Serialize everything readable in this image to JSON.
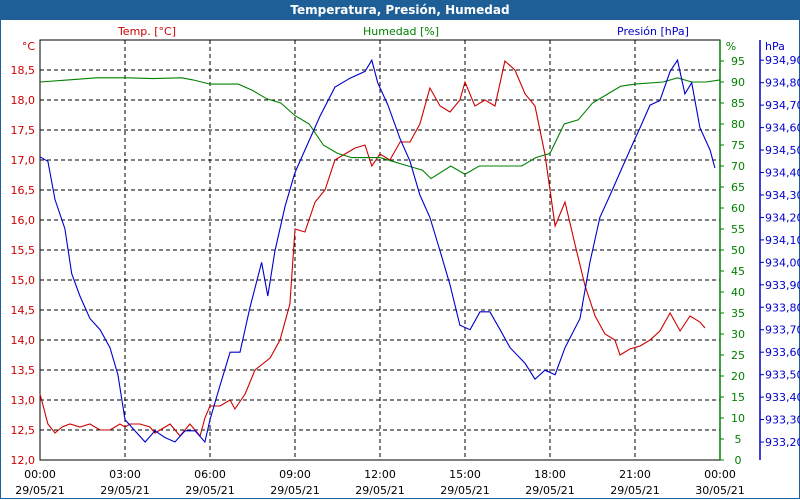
{
  "title": "Temperatura, Presión, Humedad",
  "chart_data": {
    "type": "line",
    "title": "Temperatura, Presión, Humedad",
    "x_ticks": [
      {
        "t": "00:00",
        "d": "29/05/21"
      },
      {
        "t": "03:00",
        "d": "29/05/21"
      },
      {
        "t": "06:00",
        "d": "29/05/21"
      },
      {
        "t": "09:00",
        "d": "29/05/21"
      },
      {
        "t": "12:00",
        "d": "29/05/21"
      },
      {
        "t": "15:00",
        "d": "29/05/21"
      },
      {
        "t": "18:00",
        "d": "29/05/21"
      },
      {
        "t": "21:00",
        "d": "29/05/21"
      },
      {
        "t": "00:00",
        "d": "30/05/21"
      }
    ],
    "xlim_hours": [
      0,
      24
    ],
    "axes": {
      "temp": {
        "label": "Temp. [°C]",
        "unit": "°C",
        "color": "#cc0000",
        "ylim": [
          12.0,
          19.0
        ],
        "ticks": [
          "12,0",
          "12,5",
          "13,0",
          "13,5",
          "14,0",
          "14,5",
          "15,0",
          "15,5",
          "16,0",
          "16,5",
          "17,0",
          "17,5",
          "18,0",
          "18,5"
        ]
      },
      "hum": {
        "label": "Humedad [%]",
        "unit": "%",
        "color": "#008000",
        "ylim": [
          0,
          100
        ],
        "ticks": [
          "0",
          "5",
          "10",
          "15",
          "20",
          "25",
          "30",
          "35",
          "40",
          "45",
          "50",
          "55",
          "60",
          "65",
          "70",
          "75",
          "80",
          "85",
          "90",
          "95"
        ]
      },
      "pres": {
        "label": "Presión [hPa]",
        "unit": "hPa",
        "color": "#0000cc",
        "ylim": [
          933.12,
          934.99
        ],
        "ticks": [
          "933,20",
          "933,30",
          "933,40",
          "933,50",
          "933,60",
          "933,70",
          "933,80",
          "933,90",
          "934,00",
          "934,10",
          "934,20",
          "934,30",
          "934,40",
          "934,50",
          "934,60",
          "934,70",
          "934,80",
          "934,90"
        ]
      }
    },
    "series": [
      {
        "name": "Temp. [°C]",
        "axis": "temp",
        "hours": [
          0,
          0.28,
          0.53,
          0.78,
          1.06,
          1.41,
          1.76,
          2.12,
          2.47,
          2.82,
          3,
          3.18,
          3.53,
          3.88,
          4.06,
          4.24,
          4.59,
          4.94,
          5.29,
          5.65,
          5.82,
          6,
          6.35,
          6.71,
          6.88,
          7.24,
          7.59,
          8.12,
          8.47,
          8.82,
          9,
          9.35,
          9.71,
          10.06,
          10.41,
          10.76,
          11.12,
          11.47,
          11.71,
          12,
          12.35,
          12.71,
          13.06,
          13.41,
          13.76,
          14.12,
          14.47,
          14.82,
          15,
          15.35,
          15.71,
          16.06,
          16.41,
          16.76,
          17.12,
          17.47,
          17.82,
          18.18,
          18.53,
          18.88,
          19.24,
          19.59,
          19.94,
          20.29,
          20.47,
          20.82,
          21.18,
          21.53,
          21.88,
          22.24,
          22.59,
          22.94,
          23.29,
          23.47
        ],
        "values": [
          13.1,
          12.6,
          12.45,
          12.55,
          12.6,
          12.55,
          12.6,
          12.5,
          12.5,
          12.6,
          12.55,
          12.6,
          12.6,
          12.55,
          12.45,
          12.5,
          12.6,
          12.4,
          12.6,
          12.4,
          12.7,
          12.9,
          12.9,
          13.0,
          12.85,
          13.1,
          13.5,
          13.7,
          14.0,
          14.6,
          15.85,
          15.8,
          16.3,
          16.5,
          17.0,
          17.1,
          17.2,
          17.25,
          16.9,
          17.1,
          17.0,
          17.3,
          17.3,
          17.6,
          18.2,
          17.9,
          17.8,
          18.0,
          18.3,
          17.9,
          18.0,
          17.9,
          18.65,
          18.5,
          18.1,
          17.9,
          17.1,
          15.9,
          16.3,
          15.6,
          14.9,
          14.4,
          14.1,
          14.0,
          13.75,
          13.85,
          13.9,
          14.0,
          14.15,
          14.45,
          14.15,
          14.4,
          14.3,
          14.2
        ]
      },
      {
        "name": "Humedad [%]",
        "axis": "hum",
        "hours": [
          0,
          1,
          2,
          3,
          4,
          5,
          5.4,
          6,
          7,
          7.5,
          8,
          8.5,
          9,
          9.5,
          10,
          10.5,
          11,
          12,
          12.5,
          13,
          13.5,
          13.8,
          14.5,
          15,
          15.5,
          16,
          17,
          17.5,
          18,
          18.5,
          19,
          19.5,
          20,
          20.5,
          21,
          22,
          22.5,
          23,
          23.5,
          24
        ],
        "values": [
          90,
          90.5,
          91,
          91,
          90.8,
          91,
          90.5,
          89.5,
          89.5,
          88,
          86,
          85,
          82,
          80,
          75,
          73,
          72,
          72,
          71,
          70,
          69,
          67,
          70,
          68,
          70,
          70,
          70,
          72,
          73,
          80,
          81,
          85,
          87,
          89,
          89.5,
          90,
          91,
          90,
          90,
          90.5
        ]
      },
      {
        "name": "Presión [hPa]",
        "axis": "pres",
        "hours": [
          0,
          0.28,
          0.53,
          0.88,
          1.12,
          1.41,
          1.76,
          2.12,
          2.47,
          2.75,
          3,
          3.35,
          3.71,
          4.06,
          4.41,
          4.76,
          5.12,
          5.47,
          5.82,
          6,
          6.35,
          6.71,
          7.06,
          7.41,
          7.82,
          8.04,
          8.29,
          8.65,
          9,
          9.35,
          9.88,
          10.41,
          10.94,
          11.47,
          11.71,
          11.92,
          12.28,
          12.71,
          13.06,
          13.41,
          13.76,
          14.12,
          14.47,
          14.82,
          15.18,
          15.53,
          15.88,
          16.24,
          16.59,
          17.12,
          17.47,
          17.82,
          18.18,
          18.53,
          19.06,
          19.41,
          19.76,
          20.12,
          20.47,
          20.82,
          21.18,
          21.53,
          21.88,
          22.24,
          22.5,
          22.76,
          23,
          23.29,
          23.65,
          23.82
        ],
        "values": [
          934.47,
          934.45,
          934.28,
          934.15,
          933.95,
          933.85,
          933.75,
          933.7,
          933.62,
          933.5,
          933.3,
          933.25,
          933.2,
          933.25,
          933.22,
          933.2,
          933.25,
          933.25,
          933.2,
          933.3,
          933.45,
          933.6,
          933.6,
          933.8,
          934.0,
          933.85,
          934.05,
          934.25,
          934.4,
          934.5,
          934.65,
          934.78,
          934.82,
          934.85,
          934.9,
          934.8,
          934.7,
          934.55,
          934.45,
          934.3,
          934.2,
          934.05,
          933.9,
          933.72,
          933.7,
          933.78,
          933.78,
          933.7,
          933.62,
          933.55,
          933.48,
          933.52,
          933.5,
          933.62,
          933.75,
          934.0,
          934.2,
          934.3,
          934.4,
          934.5,
          934.6,
          934.7,
          934.72,
          934.85,
          934.9,
          934.75,
          934.8,
          934.6,
          934.5,
          934.42
        ]
      }
    ],
    "grid": true
  }
}
